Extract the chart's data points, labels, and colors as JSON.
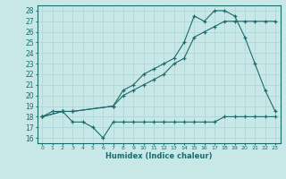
{
  "xlabel": "Humidex (Indice chaleur)",
  "bg_color": "#c8e8e8",
  "grid_color": "#b0d8d8",
  "line_color": "#1a6b6b",
  "xlim": [
    -0.5,
    23.5
  ],
  "ylim": [
    15.5,
    28.5
  ],
  "xticks": [
    0,
    1,
    2,
    3,
    4,
    5,
    6,
    7,
    8,
    9,
    10,
    11,
    12,
    13,
    14,
    15,
    16,
    17,
    18,
    19,
    20,
    21,
    22,
    23
  ],
  "yticks": [
    16,
    17,
    18,
    19,
    20,
    21,
    22,
    23,
    24,
    25,
    26,
    27,
    28
  ],
  "line1_x": [
    0,
    1,
    2,
    3,
    4,
    5,
    6,
    7,
    8,
    9,
    10,
    11,
    12,
    13,
    14,
    15,
    16,
    17,
    18,
    19,
    20,
    21,
    22,
    23
  ],
  "line1_y": [
    18,
    18.5,
    18.5,
    17.5,
    17.5,
    17.0,
    16.0,
    17.5,
    17.5,
    17.5,
    17.5,
    17.5,
    17.5,
    17.5,
    17.5,
    17.5,
    17.5,
    17.5,
    18,
    18,
    18,
    18,
    18,
    18
  ],
  "line2_x": [
    0,
    2,
    3,
    7,
    8,
    9,
    10,
    11,
    12,
    13,
    14,
    15,
    16,
    17,
    18,
    19,
    20,
    21,
    22,
    23
  ],
  "line2_y": [
    18,
    18.5,
    18.5,
    19,
    20,
    20.5,
    21,
    21.5,
    22,
    23,
    23.5,
    25.5,
    26,
    26.5,
    27,
    27,
    27,
    27,
    27,
    27
  ],
  "line3_x": [
    0,
    2,
    3,
    7,
    8,
    9,
    10,
    11,
    12,
    13,
    14,
    15,
    16,
    17,
    18,
    19,
    20,
    21,
    22,
    23
  ],
  "line3_y": [
    18,
    18.5,
    18.5,
    19,
    20.5,
    21,
    22,
    22.5,
    23,
    23.5,
    25,
    27.5,
    27,
    28,
    28,
    27.5,
    25.5,
    23,
    20.5,
    18.5
  ]
}
